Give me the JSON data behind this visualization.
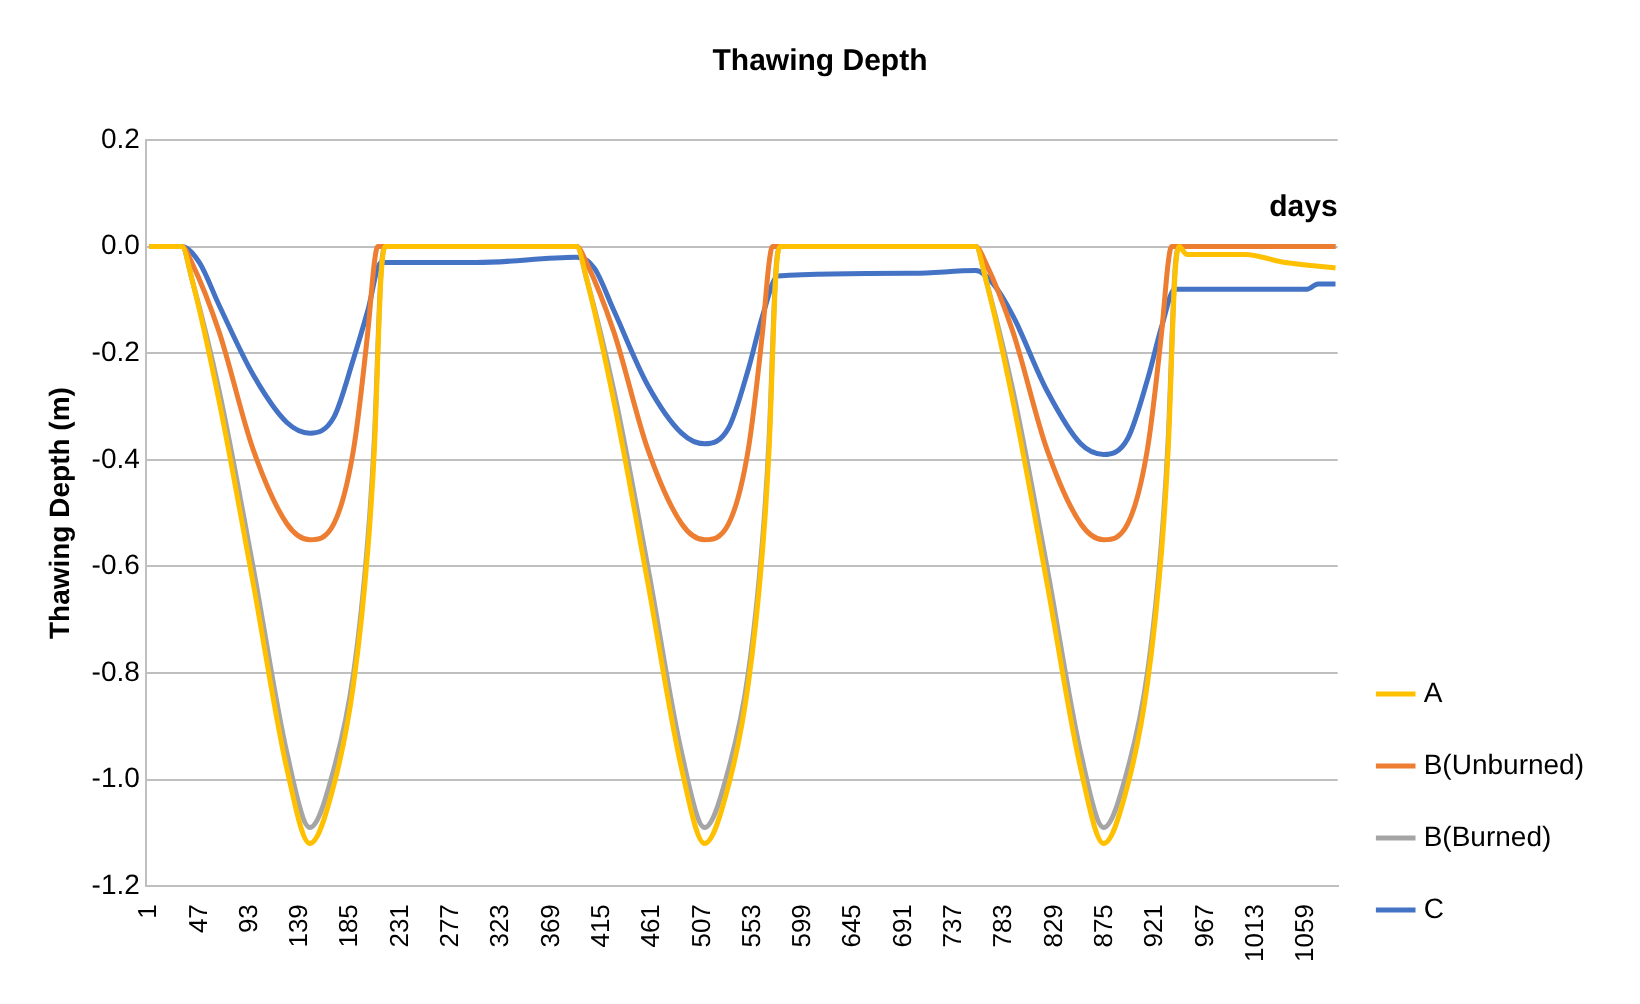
{
  "chart_data": {
    "type": "line",
    "title": "Thawing Depth",
    "xlabel": "days",
    "ylabel": "Thawing Depth (m)",
    "xlim": [
      -2,
      1088
    ],
    "xticks": [
      1,
      47,
      93,
      139,
      185,
      231,
      277,
      323,
      369,
      415,
      461,
      507,
      553,
      599,
      645,
      691,
      737,
      783,
      829,
      875,
      921,
      967,
      1013,
      1059
    ],
    "ylim": [
      -1.2,
      0.2
    ],
    "yticks": [
      {
        "value": -1.2,
        "label": "-1.2"
      },
      {
        "value": -1,
        "label": "-1.0"
      },
      {
        "value": -0.8,
        "label": "-0.8"
      },
      {
        "value": -0.6,
        "label": "-0.6"
      },
      {
        "value": -0.4,
        "label": "-0.4"
      },
      {
        "value": -0.2,
        "label": "-0.2"
      },
      {
        "value": 0,
        "label": "0.0"
      },
      {
        "value": 0.2,
        "label": "0.2"
      }
    ],
    "grid": "y",
    "legend": "right",
    "marker": "none",
    "line_style": "solid",
    "series": [
      {
        "name": "A",
        "color": "#ffc000",
        "x": [
          1,
          31,
          40,
          65,
          96,
          127,
          148,
          170,
          188,
          201,
          207,
          213,
          217,
          392,
          401,
          426,
          457,
          488,
          509,
          531,
          549,
          562,
          568,
          574,
          578,
          757,
          766,
          791,
          822,
          853,
          874,
          896,
          914,
          927,
          933,
          939,
          943,
          950,
          1003,
          1040,
          1086
        ],
        "values": [
          0,
          0,
          -0.06,
          -0.29,
          -0.63,
          -0.98,
          -1.12,
          -1.01,
          -0.82,
          -0.57,
          -0.38,
          -0.06,
          0,
          0,
          -0.06,
          -0.29,
          -0.63,
          -0.98,
          -1.12,
          -1.01,
          -0.82,
          -0.57,
          -0.38,
          -0.06,
          0,
          0,
          -0.06,
          -0.29,
          -0.63,
          -0.98,
          -1.12,
          -1.01,
          -0.82,
          -0.57,
          -0.38,
          -0.06,
          0,
          -0.015,
          -0.015,
          -0.03,
          -0.04
        ]
      },
      {
        "name": "B(Unburned)",
        "color": "#ed7d31",
        "x": [
          1,
          31,
          40,
          65,
          96,
          127,
          148,
          170,
          188,
          201,
          207,
          210,
          392,
          401,
          426,
          457,
          488,
          509,
          531,
          549,
          562,
          568,
          571,
          757,
          766,
          791,
          822,
          853,
          874,
          896,
          914,
          927,
          933,
          936,
          1086
        ],
        "values": [
          0,
          0,
          -0.03,
          -0.16,
          -0.38,
          -0.52,
          -0.55,
          -0.52,
          -0.38,
          -0.16,
          -0.03,
          0,
          0,
          -0.03,
          -0.16,
          -0.38,
          -0.52,
          -0.55,
          -0.52,
          -0.38,
          -0.16,
          -0.03,
          0,
          0,
          -0.03,
          -0.16,
          -0.38,
          -0.52,
          -0.55,
          -0.52,
          -0.38,
          -0.16,
          -0.03,
          0,
          0
        ]
      },
      {
        "name": "B(Burned)",
        "color": "#a5a5a5",
        "x": [
          1,
          31,
          40,
          65,
          96,
          127,
          148,
          170,
          188,
          201,
          207,
          213,
          217,
          392,
          401,
          426,
          457,
          488,
          509,
          531,
          549,
          562,
          568,
          574,
          578,
          757,
          766,
          791,
          822,
          853,
          874,
          896,
          914,
          927,
          933,
          939,
          943,
          1086
        ],
        "values": [
          0,
          0,
          -0.06,
          -0.27,
          -0.6,
          -0.95,
          -1.09,
          -0.98,
          -0.8,
          -0.55,
          -0.36,
          -0.05,
          0,
          0,
          -0.06,
          -0.27,
          -0.6,
          -0.95,
          -1.09,
          -0.98,
          -0.8,
          -0.55,
          -0.36,
          -0.05,
          0,
          0,
          -0.06,
          -0.27,
          -0.6,
          -0.95,
          -1.09,
          -0.98,
          -0.8,
          -0.55,
          -0.36,
          -0.05,
          0,
          0
        ]
      },
      {
        "name": "C",
        "color": "#4472c4",
        "x": [
          1,
          31,
          47,
          65,
          96,
          127,
          148,
          170,
          188,
          201,
          213,
          300,
          392,
          408,
          426,
          457,
          488,
          509,
          531,
          549,
          562,
          576,
          700,
          757,
          773,
          791,
          822,
          853,
          874,
          896,
          914,
          927,
          939,
          1060,
          1070,
          1086
        ],
        "values": [
          0,
          0,
          -0.03,
          -0.11,
          -0.24,
          -0.33,
          -0.35,
          -0.32,
          -0.21,
          -0.12,
          -0.03,
          -0.03,
          -0.02,
          -0.04,
          -0.12,
          -0.26,
          -0.35,
          -0.37,
          -0.34,
          -0.23,
          -0.13,
          -0.055,
          -0.05,
          -0.045,
          -0.07,
          -0.13,
          -0.27,
          -0.37,
          -0.39,
          -0.36,
          -0.25,
          -0.15,
          -0.08,
          -0.08,
          -0.07,
          -0.07
        ]
      }
    ]
  }
}
